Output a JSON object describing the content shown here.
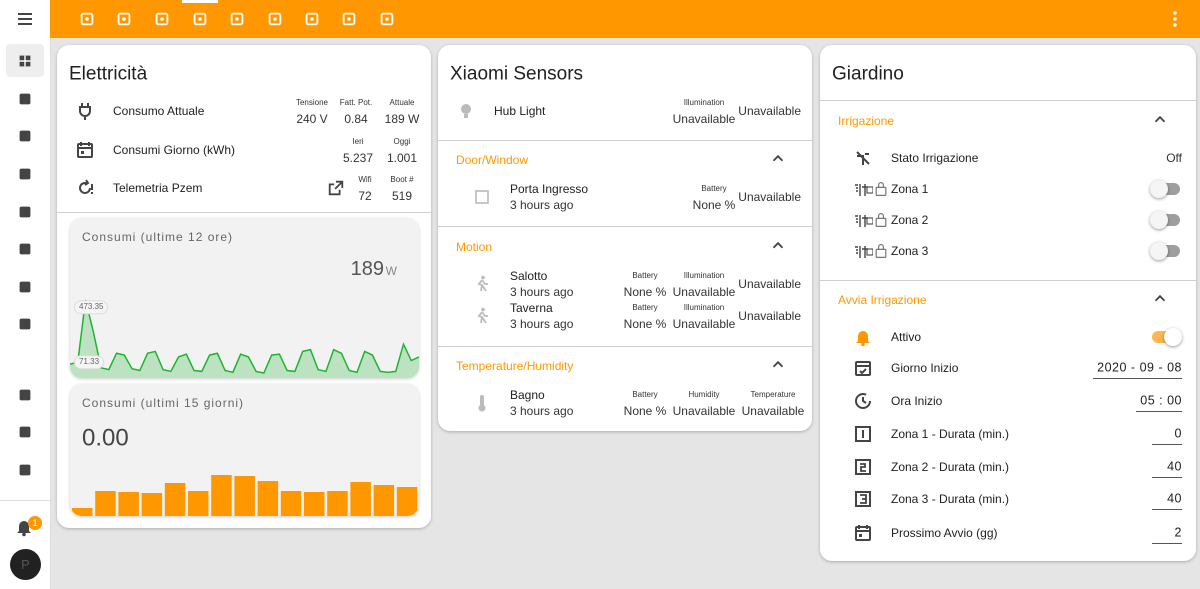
{
  "sidebar": {
    "notification_count": "1",
    "user_initial": "P"
  },
  "electricity": {
    "title": "Elettricità",
    "entities": [
      {
        "name": "Consumo Attuale",
        "attributes": [
          {
            "label": "Tensione",
            "value": "240 V"
          },
          {
            "label": "Fatt. Pot.",
            "value": "0.84"
          },
          {
            "label": "Attuale",
            "value": "189 W"
          }
        ]
      },
      {
        "name": "Consumi Giorno (kWh)",
        "attributes": [
          {
            "label": "Ieri",
            "value": "5.237"
          },
          {
            "label": "Oggi",
            "value": "1.001"
          }
        ]
      },
      {
        "name": "Telemetria Pzem",
        "attributes": [
          {
            "label": "Wifi",
            "value": "72"
          },
          {
            "label": "Boot #",
            "value": "519"
          }
        ]
      }
    ],
    "graphs": [
      {
        "type": "line",
        "title": "Consumi (ultime 12 ore)",
        "state": "189",
        "unit": "W",
        "color": "#1db52e",
        "values": [
          120,
          130,
          473.35,
          300,
          100,
          90,
          180,
          170,
          95,
          85,
          180,
          190,
          90,
          80,
          160,
          175,
          85,
          80,
          170,
          180,
          85,
          75,
          175,
          160,
          80,
          71.33,
          170,
          175,
          85,
          80,
          190,
          200,
          90,
          80,
          200,
          180,
          85,
          75,
          190,
          170,
          80,
          75,
          80,
          230,
          140,
          160
        ]
      },
      {
        "type": "bar",
        "title": "Consumi (ultimi 15 giorni)",
        "state": "0.00",
        "color": "#ff9800",
        "values": [
          1.6,
          5,
          4.8,
          4.6,
          6.6,
          5,
          8.2,
          8,
          7,
          5,
          4.8,
          5,
          6.8,
          6.2,
          5.8
        ]
      }
    ]
  },
  "xiaomi": {
    "title": "Xiaomi Sensors",
    "entities": [
      {
        "name": "Hub Light",
        "attributes": [
          {
            "label": "Illumination",
            "value": "Unavailable"
          }
        ],
        "state": "Unavailable"
      }
    ],
    "sections": [
      {
        "title": "Door/Window",
        "entities": [
          {
            "name": "Porta Ingresso",
            "secondary": "3 hours ago",
            "attributes": [
              {
                "label": "Battery",
                "value": "None %"
              }
            ],
            "state": "Unavailable"
          }
        ]
      },
      {
        "title": "Motion",
        "entities": [
          {
            "name": "Salotto",
            "secondary": "3 hours ago",
            "attributes": [
              {
                "label": "Battery",
                "value": "None %"
              },
              {
                "label": "Illumination",
                "value": "Unavailable"
              }
            ],
            "state": "Unavailable"
          },
          {
            "name": "Taverna",
            "secondary": "3 hours ago",
            "attributes": [
              {
                "label": "Battery",
                "value": "None %"
              },
              {
                "label": "Illumination",
                "value": "Unavailable"
              }
            ],
            "state": "Unavailable"
          }
        ]
      },
      {
        "title": "Temperature/Humidity",
        "entities": [
          {
            "name": "Bagno",
            "secondary": "3 hours ago",
            "attributes": [
              {
                "label": "Battery",
                "value": "None %"
              },
              {
                "label": "Humidity",
                "value": "Unavailable"
              },
              {
                "label": "Temperature",
                "value": "Unavailable"
              }
            ]
          }
        ]
      }
    ]
  },
  "garden": {
    "title": "Giardino",
    "sections": [
      {
        "title": "Irrigazione",
        "entities": [
          {
            "name": "Stato Irrigazione",
            "state": "Off"
          },
          {
            "name": "Zona 1",
            "toggle": "off"
          },
          {
            "name": "Zona 2",
            "toggle": "off"
          },
          {
            "name": "Zona 3",
            "toggle": "off"
          }
        ]
      },
      {
        "title": "Avvia Irrigazione",
        "entities": [
          {
            "name": "Attivo",
            "toggle": "on"
          },
          {
            "name": "Giorno Inizio",
            "input": "2020 - 09 - 08"
          },
          {
            "name": "Ora Inizio",
            "input": "05 : 00"
          },
          {
            "name": "Zona 1 - Durata (min.)",
            "input": "0"
          },
          {
            "name": "Zona 2 - Durata (min.)",
            "input": "40"
          },
          {
            "name": "Zona 3 - Durata (min.)",
            "input": "40"
          },
          {
            "name": "Prossimo Avvio (gg)",
            "input": "2"
          }
        ]
      }
    ]
  }
}
